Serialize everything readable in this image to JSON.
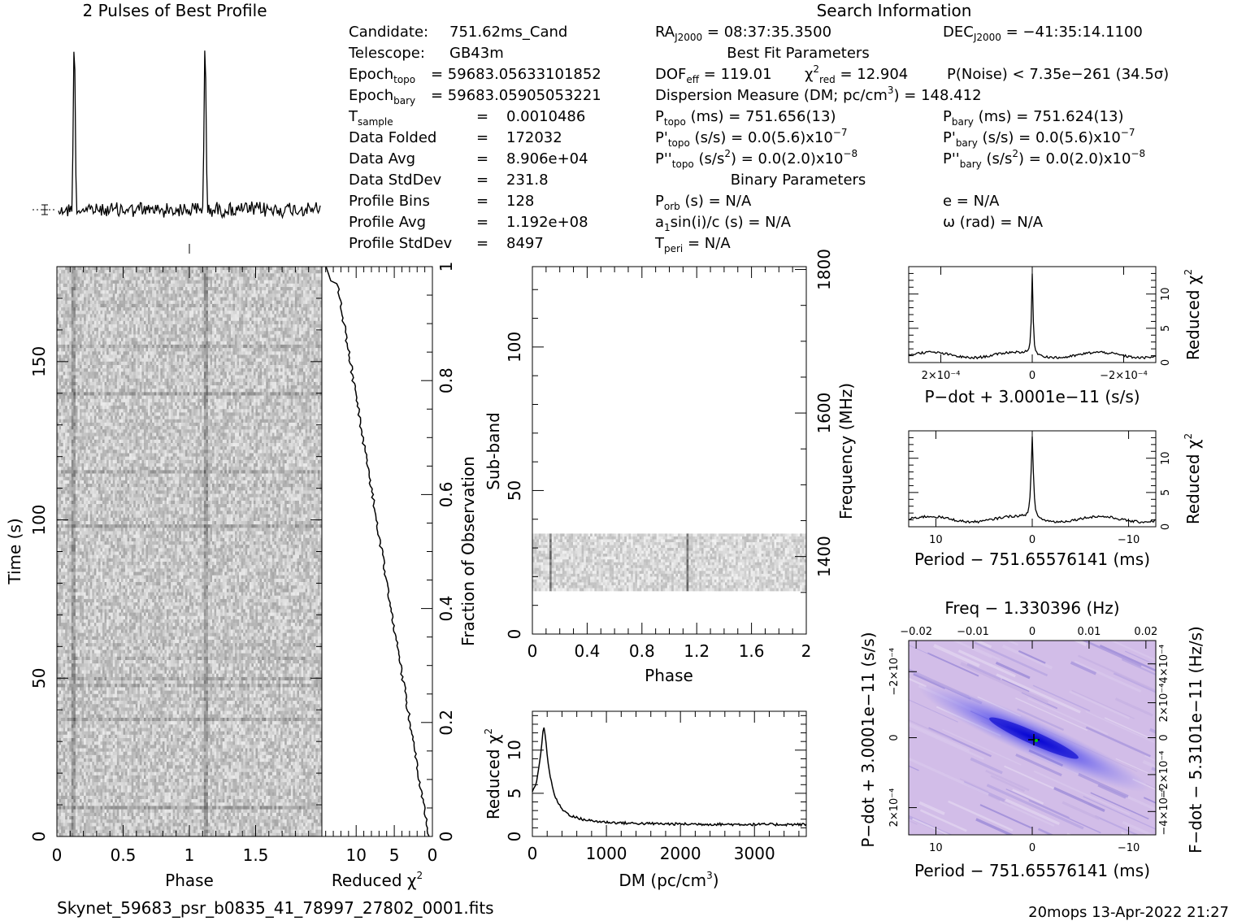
{
  "header": {
    "profile_title": "2 Pulses of Best Profile",
    "search_title": "Search Information",
    "footer_file": "Skynet_59683_psr_b0835_41_78997_27802_0001.fits",
    "footer_stamp": "20mops 13-Apr-2022 21:27"
  },
  "info_left": [
    {
      "k": "Candidate:",
      "v": "751.62ms_Cand"
    },
    {
      "k": "Telescope:",
      "v": "GB43m"
    },
    {
      "k": "Epoch_topo",
      "v": "= 59683.05633101852"
    },
    {
      "k": "Epoch_bary",
      "v": "= 59683.05905053221"
    },
    {
      "k": "T_sample",
      "v": "0.0010486"
    },
    {
      "k": "Data Folded",
      "v": "172032"
    },
    {
      "k": "Data Avg",
      "v": "8.906e+04"
    },
    {
      "k": "Data StdDev",
      "v": "231.8"
    },
    {
      "k": "Profile Bins",
      "v": "128"
    },
    {
      "k": "Profile Avg",
      "v": "1.192e+08"
    },
    {
      "k": "Profile StdDev",
      "v": "8497"
    }
  ],
  "info_mid": {
    "ra": "RA_J2000 = 08:37:35.3500",
    "dec": "DEC_J2000 = −41:35:14.1100",
    "best_fit_title": "Best Fit Parameters",
    "dof": "DOF_eff = 119.01",
    "chi2": "χ²_red = 12.904",
    "pnoise": "P(Noise) < 7.35e−261   (34.5σ)",
    "dm": "Dispersion Measure (DM; pc/cm³) = 148.412",
    "ptopo": "P_topo (ms) =  751.656(13)",
    "pbary": "P_bary (ms) =  751.624(13)",
    "pdtopo": "P'_topo (s/s) = 0.0(5.6)x10⁻⁷",
    "pdbary": "P'_bary (s/s) = 0.0(5.6)x10⁻⁷",
    "pddtopo": "P''_topo (s/s²) = 0.0(2.0)x10⁻⁸",
    "pddbary": "P''_bary (s/s²) = 0.0(2.0)x10⁻⁸",
    "binary_title": "Binary Parameters",
    "porb": "P_orb (s) = N/A",
    "e": "e = N/A",
    "a1": "a₁sin(i)/c (s) = N/A",
    "omega": "ω (rad) = N/A",
    "tperi": "T_peri = N/A"
  },
  "chart_data": [
    {
      "name": "profile",
      "type": "line",
      "title": "2 Pulses of Best Profile",
      "peaks_phase": [
        0.12,
        1.12
      ]
    },
    {
      "name": "time-phase",
      "type": "heatmap",
      "xlabel": "Phase",
      "ylabel": "Time (s)",
      "xlim": [
        0,
        2
      ],
      "ylim": [
        0,
        180
      ],
      "xticks": [
        "0",
        "0.5",
        "1",
        "1.5"
      ],
      "yticks": [
        "0",
        "50",
        "100",
        "150"
      ]
    },
    {
      "name": "chi2-vs-time",
      "type": "line",
      "xlabel": "Reduced χ²",
      "ylabel": "Fraction of Observation",
      "xlim": [
        14.5,
        0
      ],
      "ylim": [
        0,
        1
      ],
      "xticks": [
        "10",
        "5",
        "0"
      ],
      "yticks": [
        "0",
        "0.2",
        "0.4",
        "0.6",
        "0.8",
        "1"
      ]
    },
    {
      "name": "subband-phase",
      "type": "heatmap",
      "xlabel": "Phase",
      "ylabel": "Sub-band",
      "y2label": "Frequency (MHz)",
      "xlim": [
        0,
        2
      ],
      "ylim": [
        0,
        128
      ],
      "xticks": [
        "0",
        "0.4",
        "0.8",
        "1.2",
        "1.6",
        "2"
      ],
      "yticks": [
        "0",
        "50",
        "100"
      ],
      "y2ticks": [
        "1400",
        "1600",
        "1800"
      ],
      "band_subbands": [
        15,
        35
      ]
    },
    {
      "name": "chi2-vs-dm",
      "type": "line",
      "xlabel": "DM (pc/cm³)",
      "ylabel": "Reduced χ²",
      "xlim": [
        0,
        3700
      ],
      "ylim": [
        0,
        14.5
      ],
      "xticks": [
        "0",
        "1000",
        "2000",
        "3000"
      ],
      "yticks": [
        "0",
        "5",
        "10"
      ],
      "peak": {
        "x": 148.412,
        "y": 12.9
      }
    },
    {
      "name": "chi2-vs-pdot",
      "type": "line",
      "xlabel": "P−dot + 3.0001e−11 (s/s)",
      "ylabel": "Reduced χ²",
      "xticks": [
        "2×10⁻⁴",
        "0",
        "−2×10⁻⁴"
      ],
      "yticks": [
        "0",
        "5",
        "10"
      ]
    },
    {
      "name": "chi2-vs-period",
      "type": "line",
      "xlabel": "Period − 751.65576141 (ms)",
      "ylabel": "Reduced χ²",
      "xticks": [
        "10",
        "0",
        "−10"
      ],
      "yticks": [
        "0",
        "5",
        "10"
      ]
    },
    {
      "name": "p-pdot-plane",
      "type": "heatmap",
      "xlabel": "Period − 751.65576141 (ms)",
      "ylabel": "P−dot + 3.0001e−11 (s/s)",
      "x2label": "Freq − 1.330396 (Hz)",
      "y2label": "F−dot − 5.3101e−11 (Hz/s)",
      "xticks": [
        "10",
        "0",
        "−10"
      ],
      "x2ticks": [
        "−0.02",
        "−0.01",
        "0",
        "0.01",
        "0.02"
      ],
      "yticks": [
        "−2×10⁻⁴",
        "0",
        "2×10⁻⁴"
      ],
      "y2ticks": [
        "4×10⁻⁴",
        "2×10⁻⁴",
        "0",
        "−2×10⁻⁴",
        "−4×10⁻⁴"
      ]
    }
  ]
}
